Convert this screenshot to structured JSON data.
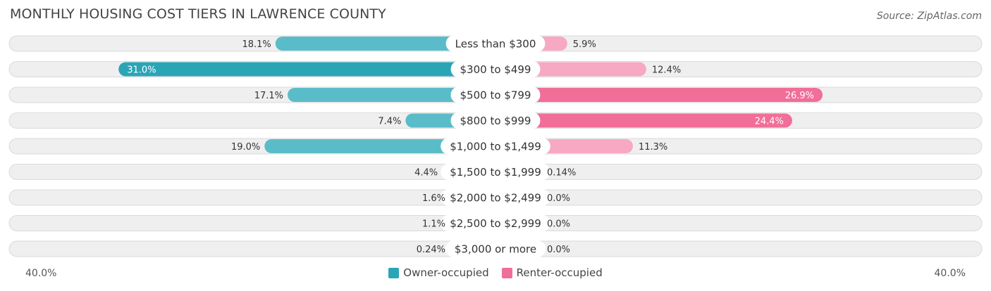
{
  "title": "MONTHLY HOUSING COST TIERS IN LAWRENCE COUNTY",
  "source": "Source: ZipAtlas.com",
  "colors": {
    "owner": "#5bbcc9",
    "owner_strong": "#2aa5b6",
    "renter": "#f7a8c2",
    "renter_strong": "#f06e98"
  },
  "chart_data": {
    "type": "bar",
    "orientation": "horizontal-diverging",
    "title": "MONTHLY HOUSING COST TIERS IN LAWRENCE COUNTY",
    "categories": [
      "Less than $300",
      "$300 to $499",
      "$500 to $799",
      "$800 to $999",
      "$1,000 to $1,499",
      "$1,500 to $1,999",
      "$2,000 to $2,499",
      "$2,500 to $2,999",
      "$3,000 or more"
    ],
    "series": [
      {
        "name": "Owner-occupied",
        "values": [
          18.1,
          31.0,
          17.1,
          7.4,
          19.0,
          4.4,
          1.6,
          1.1,
          0.24
        ],
        "labels": [
          "18.1%",
          "31.0%",
          "17.1%",
          "7.4%",
          "19.0%",
          "4.4%",
          "1.6%",
          "1.1%",
          "0.24%"
        ]
      },
      {
        "name": "Renter-occupied",
        "values": [
          5.9,
          12.4,
          26.9,
          24.4,
          11.3,
          0.14,
          0.0,
          0.0,
          0.0
        ],
        "labels": [
          "5.9%",
          "12.4%",
          "26.9%",
          "24.4%",
          "11.3%",
          "0.14%",
          "0.0%",
          "0.0%",
          "0.0%"
        ]
      }
    ],
    "xlim": [
      -40,
      40
    ],
    "axis_left_label": "40.0%",
    "axis_right_label": "40.0%",
    "legend_position": "bottom-center"
  }
}
